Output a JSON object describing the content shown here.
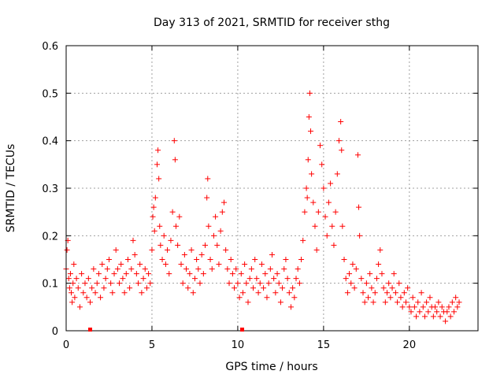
{
  "chart_data": {
    "type": "scatter",
    "title": "Day 313 of 2021, SRMTID for receiver sthg",
    "xlabel": "GPS time / hours",
    "ylabel": "SRMTID / TECUs",
    "xlim": [
      0,
      24
    ],
    "ylim": [
      0,
      0.6
    ],
    "x_ticks": [
      0,
      5,
      10,
      15,
      20
    ],
    "y_ticks": [
      0,
      0.1,
      0.2,
      0.3,
      0.4,
      0.5,
      0.6
    ],
    "x_tick_labels": [
      "0",
      "5",
      "10",
      "15",
      "20"
    ],
    "y_tick_labels": [
      "0",
      "0.1",
      "0.2",
      "0.3",
      "0.4",
      "0.5",
      "0.6"
    ],
    "grid": true,
    "marker": "+",
    "color": "#ff0000",
    "series": [
      {
        "name": "SRMTID",
        "points": [
          [
            0.0,
            0.13
          ],
          [
            0.05,
            0.17
          ],
          [
            0.1,
            0.19
          ],
          [
            0.15,
            0.11
          ],
          [
            0.2,
            0.09
          ],
          [
            0.25,
            0.12
          ],
          [
            0.3,
            0.08
          ],
          [
            0.35,
            0.06
          ],
          [
            0.4,
            0.1
          ],
          [
            0.45,
            0.14
          ],
          [
            0.5,
            0.07
          ],
          [
            0.6,
            0.11
          ],
          [
            0.7,
            0.09
          ],
          [
            0.8,
            0.05
          ],
          [
            0.9,
            0.12
          ],
          [
            1.0,
            0.08
          ],
          [
            1.1,
            0.1
          ],
          [
            1.2,
            0.07
          ],
          [
            1.3,
            0.11
          ],
          [
            1.4,
            0.06
          ],
          [
            1.5,
            0.09
          ],
          [
            1.6,
            0.13
          ],
          [
            1.7,
            0.08
          ],
          [
            1.8,
            0.1
          ],
          [
            1.9,
            0.12
          ],
          [
            2.0,
            0.07
          ],
          [
            2.1,
            0.14
          ],
          [
            2.2,
            0.09
          ],
          [
            2.3,
            0.11
          ],
          [
            2.4,
            0.13
          ],
          [
            2.5,
            0.15
          ],
          [
            2.6,
            0.1
          ],
          [
            2.7,
            0.08
          ],
          [
            2.8,
            0.12
          ],
          [
            2.9,
            0.17
          ],
          [
            3.0,
            0.13
          ],
          [
            3.1,
            0.1
          ],
          [
            3.2,
            0.14
          ],
          [
            3.3,
            0.11
          ],
          [
            3.4,
            0.08
          ],
          [
            3.5,
            0.12
          ],
          [
            3.6,
            0.15
          ],
          [
            3.7,
            0.09
          ],
          [
            3.8,
            0.13
          ],
          [
            3.9,
            0.19
          ],
          [
            4.0,
            0.16
          ],
          [
            4.1,
            0.12
          ],
          [
            4.2,
            0.1
          ],
          [
            4.3,
            0.14
          ],
          [
            4.4,
            0.08
          ],
          [
            4.5,
            0.11
          ],
          [
            4.6,
            0.13
          ],
          [
            4.7,
            0.09
          ],
          [
            4.8,
            0.12
          ],
          [
            4.9,
            0.1
          ],
          [
            5.0,
            0.17
          ],
          [
            5.05,
            0.24
          ],
          [
            5.1,
            0.26
          ],
          [
            5.15,
            0.21
          ],
          [
            5.2,
            0.28
          ],
          [
            5.3,
            0.35
          ],
          [
            5.35,
            0.38
          ],
          [
            5.4,
            0.32
          ],
          [
            5.45,
            0.22
          ],
          [
            5.5,
            0.18
          ],
          [
            5.6,
            0.15
          ],
          [
            5.7,
            0.2
          ],
          [
            5.8,
            0.14
          ],
          [
            5.9,
            0.17
          ],
          [
            6.0,
            0.12
          ],
          [
            6.1,
            0.19
          ],
          [
            6.2,
            0.25
          ],
          [
            6.3,
            0.4
          ],
          [
            6.35,
            0.36
          ],
          [
            6.4,
            0.22
          ],
          [
            6.5,
            0.18
          ],
          [
            6.6,
            0.24
          ],
          [
            6.7,
            0.14
          ],
          [
            6.8,
            0.1
          ],
          [
            6.9,
            0.16
          ],
          [
            7.0,
            0.13
          ],
          [
            7.1,
            0.09
          ],
          [
            7.2,
            0.12
          ],
          [
            7.3,
            0.17
          ],
          [
            7.4,
            0.08
          ],
          [
            7.5,
            0.11
          ],
          [
            7.6,
            0.15
          ],
          [
            7.7,
            0.13
          ],
          [
            7.8,
            0.1
          ],
          [
            7.9,
            0.16
          ],
          [
            8.0,
            0.12
          ],
          [
            8.1,
            0.18
          ],
          [
            8.2,
            0.28
          ],
          [
            8.25,
            0.32
          ],
          [
            8.3,
            0.22
          ],
          [
            8.4,
            0.15
          ],
          [
            8.5,
            0.13
          ],
          [
            8.6,
            0.2
          ],
          [
            8.7,
            0.24
          ],
          [
            8.8,
            0.18
          ],
          [
            8.9,
            0.14
          ],
          [
            9.0,
            0.21
          ],
          [
            9.1,
            0.25
          ],
          [
            9.2,
            0.27
          ],
          [
            9.3,
            0.17
          ],
          [
            9.4,
            0.13
          ],
          [
            9.5,
            0.1
          ],
          [
            9.6,
            0.15
          ],
          [
            9.7,
            0.12
          ],
          [
            9.8,
            0.09
          ],
          [
            9.9,
            0.13
          ],
          [
            10.0,
            0.1
          ],
          [
            10.1,
            0.07
          ],
          [
            10.2,
            0.12
          ],
          [
            10.3,
            0.08
          ],
          [
            10.4,
            0.14
          ],
          [
            10.5,
            0.1
          ],
          [
            10.6,
            0.06
          ],
          [
            10.7,
            0.11
          ],
          [
            10.8,
            0.13
          ],
          [
            10.9,
            0.09
          ],
          [
            11.0,
            0.15
          ],
          [
            11.1,
            0.11
          ],
          [
            11.2,
            0.08
          ],
          [
            11.3,
            0.1
          ],
          [
            11.4,
            0.14
          ],
          [
            11.5,
            0.09
          ],
          [
            11.6,
            0.12
          ],
          [
            11.7,
            0.07
          ],
          [
            11.8,
            0.1
          ],
          [
            11.9,
            0.13
          ],
          [
            12.0,
            0.16
          ],
          [
            12.1,
            0.11
          ],
          [
            12.2,
            0.08
          ],
          [
            12.3,
            0.12
          ],
          [
            12.4,
            0.1
          ],
          [
            12.5,
            0.06
          ],
          [
            12.6,
            0.09
          ],
          [
            12.7,
            0.13
          ],
          [
            12.8,
            0.15
          ],
          [
            12.9,
            0.11
          ],
          [
            13.0,
            0.08
          ],
          [
            13.1,
            0.05
          ],
          [
            13.2,
            0.09
          ],
          [
            13.3,
            0.07
          ],
          [
            13.4,
            0.11
          ],
          [
            13.5,
            0.13
          ],
          [
            13.6,
            0.1
          ],
          [
            13.7,
            0.15
          ],
          [
            13.8,
            0.19
          ],
          [
            13.9,
            0.25
          ],
          [
            14.0,
            0.3
          ],
          [
            14.05,
            0.28
          ],
          [
            14.1,
            0.36
          ],
          [
            14.15,
            0.45
          ],
          [
            14.2,
            0.5
          ],
          [
            14.25,
            0.42
          ],
          [
            14.3,
            0.33
          ],
          [
            14.4,
            0.27
          ],
          [
            14.5,
            0.22
          ],
          [
            14.6,
            0.17
          ],
          [
            14.7,
            0.25
          ],
          [
            14.8,
            0.39
          ],
          [
            14.9,
            0.35
          ],
          [
            15.0,
            0.3
          ],
          [
            15.1,
            0.24
          ],
          [
            15.2,
            0.2
          ],
          [
            15.3,
            0.27
          ],
          [
            15.4,
            0.31
          ],
          [
            15.5,
            0.22
          ],
          [
            15.6,
            0.18
          ],
          [
            15.7,
            0.25
          ],
          [
            15.8,
            0.33
          ],
          [
            15.9,
            0.4
          ],
          [
            16.0,
            0.44
          ],
          [
            16.05,
            0.38
          ],
          [
            16.1,
            0.22
          ],
          [
            16.2,
            0.15
          ],
          [
            16.3,
            0.11
          ],
          [
            16.4,
            0.08
          ],
          [
            16.5,
            0.12
          ],
          [
            16.6,
            0.1
          ],
          [
            16.7,
            0.14
          ],
          [
            16.8,
            0.09
          ],
          [
            16.9,
            0.13
          ],
          [
            17.0,
            0.37
          ],
          [
            17.05,
            0.26
          ],
          [
            17.1,
            0.2
          ],
          [
            17.2,
            0.11
          ],
          [
            17.3,
            0.08
          ],
          [
            17.4,
            0.06
          ],
          [
            17.5,
            0.1
          ],
          [
            17.6,
            0.07
          ],
          [
            17.7,
            0.12
          ],
          [
            17.8,
            0.09
          ],
          [
            17.9,
            0.06
          ],
          [
            18.0,
            0.08
          ],
          [
            18.1,
            0.11
          ],
          [
            18.2,
            0.14
          ],
          [
            18.3,
            0.17
          ],
          [
            18.4,
            0.12
          ],
          [
            18.5,
            0.09
          ],
          [
            18.6,
            0.06
          ],
          [
            18.7,
            0.08
          ],
          [
            18.8,
            0.1
          ],
          [
            18.9,
            0.07
          ],
          [
            19.0,
            0.09
          ],
          [
            19.1,
            0.12
          ],
          [
            19.2,
            0.08
          ],
          [
            19.3,
            0.06
          ],
          [
            19.4,
            0.1
          ],
          [
            19.5,
            0.07
          ],
          [
            19.6,
            0.05
          ],
          [
            19.7,
            0.08
          ],
          [
            19.8,
            0.06
          ],
          [
            19.9,
            0.09
          ],
          [
            20.0,
            0.05
          ],
          [
            20.1,
            0.04
          ],
          [
            20.2,
            0.07
          ],
          [
            20.3,
            0.05
          ],
          [
            20.4,
            0.03
          ],
          [
            20.5,
            0.06
          ],
          [
            20.6,
            0.04
          ],
          [
            20.7,
            0.08
          ],
          [
            20.8,
            0.05
          ],
          [
            20.9,
            0.03
          ],
          [
            21.0,
            0.06
          ],
          [
            21.1,
            0.04
          ],
          [
            21.2,
            0.07
          ],
          [
            21.3,
            0.05
          ],
          [
            21.4,
            0.03
          ],
          [
            21.5,
            0.05
          ],
          [
            21.6,
            0.04
          ],
          [
            21.7,
            0.06
          ],
          [
            21.8,
            0.03
          ],
          [
            21.9,
            0.05
          ],
          [
            22.0,
            0.04
          ],
          [
            22.1,
            0.02
          ],
          [
            22.2,
            0.04
          ],
          [
            22.3,
            0.05
          ],
          [
            22.4,
            0.03
          ],
          [
            22.5,
            0.06
          ],
          [
            22.6,
            0.04
          ],
          [
            22.7,
            0.07
          ],
          [
            22.8,
            0.05
          ],
          [
            22.9,
            0.06
          ]
        ]
      }
    ]
  }
}
